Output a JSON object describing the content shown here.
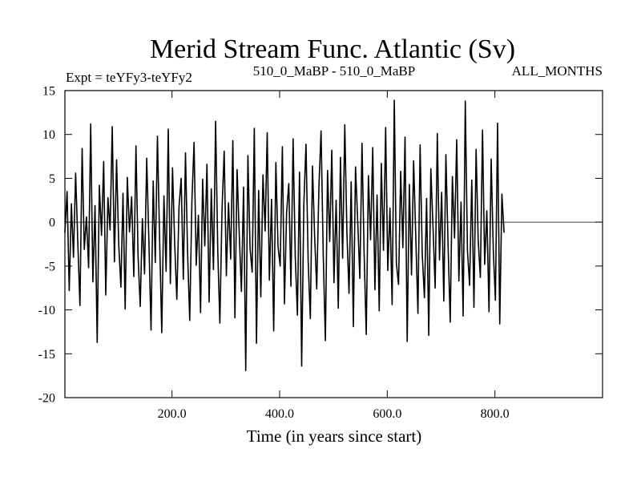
{
  "chart_data": {
    "type": "line",
    "title": "Merid Stream Func. Atlantic (Sv)",
    "subtitle_left": "Expt = teYFy3-teYFy2",
    "subtitle_center": "510_0_MaBP - 510_0_MaBP",
    "subtitle_right": "ALL_MONTHS",
    "xlabel": "Time (in years since start)",
    "ylabel": "",
    "xlim": [
      1,
      1000
    ],
    "ylim": [
      -20,
      15
    ],
    "xticks": [
      200,
      400,
      600,
      800
    ],
    "xtick_labels": [
      "200.0",
      "400.0",
      "600.0",
      "800.0"
    ],
    "yticks": [
      -20,
      -15,
      -10,
      -5,
      0,
      5,
      10,
      15
    ],
    "ytick_labels": [
      "-20",
      "-15",
      "-10",
      "-5",
      "0",
      "5",
      "10",
      "15"
    ],
    "zero_line": true,
    "grid": false,
    "line_color": "#000000",
    "series": [
      {
        "x_start": 1,
        "x_step": 4,
        "values": [
          -1.2,
          3.5,
          -7.8,
          2.1,
          -4.0,
          5.6,
          -2.3,
          -9.5,
          8.4,
          -3.1,
          0.6,
          -5.2,
          11.2,
          -6.8,
          1.9,
          -13.7,
          4.2,
          -1.5,
          6.9,
          -8.3,
          2.8,
          -0.9,
          10.9,
          -4.5,
          7.1,
          -2.6,
          -7.4,
          3.3,
          -9.9,
          5.1,
          -1.1,
          2.9,
          -6.2,
          8.7,
          -3.8,
          -9.6,
          0.4,
          -5.9,
          7.3,
          -2.1,
          -12.3,
          4.7,
          -4.6,
          9.8,
          -1.9,
          -12.6,
          3.0,
          -5.6,
          10.6,
          -7.0,
          6.2,
          -2.4,
          -8.8,
          1.7,
          5.0,
          -6.5,
          7.9,
          -3.5,
          -11.2,
          2.4,
          9.1,
          -4.9,
          0.8,
          -10.3,
          4.9,
          -2.7,
          6.6,
          -9.1,
          3.8,
          -5.4,
          11.5,
          -3.3,
          -11.5,
          1.4,
          8.1,
          -6.1,
          2.2,
          -4.2,
          9.3,
          -10.9,
          6.0,
          -1.4,
          -7.9,
          4.0,
          -16.9,
          7.6,
          -3.0,
          -5.7,
          10.7,
          -13.8,
          3.6,
          -8.5,
          5.4,
          -1.0,
          10.2,
          -6.6,
          2.6,
          -12.4,
          6.8,
          -2.8,
          -5.0,
          8.6,
          -9.3,
          1.1,
          4.4,
          -7.3,
          9.5,
          -3.9,
          -10.6,
          5.7,
          -16.4,
          2.0,
          8.9,
          -4.4,
          -11.0,
          6.4,
          -1.7,
          -7.6,
          3.9,
          10.4,
          -3.6,
          -13.5,
          5.9,
          -2.2,
          8.2,
          -6.9,
          2.5,
          -9.8,
          7.4,
          -4.1,
          11.1,
          -1.3,
          -8.1,
          4.6,
          -11.9,
          6.3,
          0.2,
          -6.4,
          9.0,
          -3.4,
          -12.8,
          5.3,
          -2.0,
          8.5,
          -7.7,
          3.1,
          -10.1,
          6.7,
          -3.2,
          10.8,
          -5.5,
          1.6,
          -9.4,
          13.9,
          -4.7,
          -7.1,
          5.8,
          -2.9,
          9.7,
          -13.6,
          4.3,
          -6.0,
          7.0,
          -1.6,
          -10.4,
          8.8,
          -3.7,
          -8.6,
          2.7,
          -12.9,
          6.1,
          -0.5,
          -7.5,
          10.1,
          -4.3,
          3.4,
          -9.0,
          7.7,
          -2.5,
          -11.4,
          5.2,
          -1.8,
          9.4,
          -6.7,
          2.3,
          -10.7,
          13.8,
          -3.2,
          -7.2,
          4.8,
          -9.7,
          8.3,
          -2.1,
          -6.3,
          10.5,
          -4.8,
          1.3,
          -10.2,
          7.2,
          -3.3,
          -8.9,
          11.3,
          -11.6,
          3.2,
          -1.2
        ]
      }
    ]
  }
}
